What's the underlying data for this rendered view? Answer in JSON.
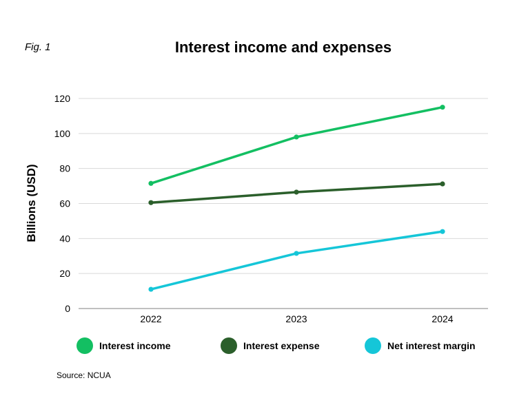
{
  "fig_label": "Fig. 1",
  "source": "Source: NCUA",
  "chart_data": {
    "type": "line",
    "title": "Interest income and expenses",
    "xlabel": "",
    "ylabel": "Billions (USD)",
    "categories": [
      "2022",
      "2023",
      "2024"
    ],
    "ylim": [
      0,
      120
    ],
    "yticks": [
      0,
      20,
      40,
      60,
      80,
      100,
      120
    ],
    "grid": true,
    "legend_position": "bottom",
    "series": [
      {
        "name": "Interest income",
        "values": [
          71.5,
          98,
          115
        ],
        "color": "#13bf62"
      },
      {
        "name": "Interest expense",
        "values": [
          60.5,
          66.5,
          71.2
        ],
        "color": "#2b5f2b"
      },
      {
        "name": "Net interest margin",
        "values": [
          11,
          31.5,
          44
        ],
        "color": "#15c6d8"
      }
    ]
  }
}
